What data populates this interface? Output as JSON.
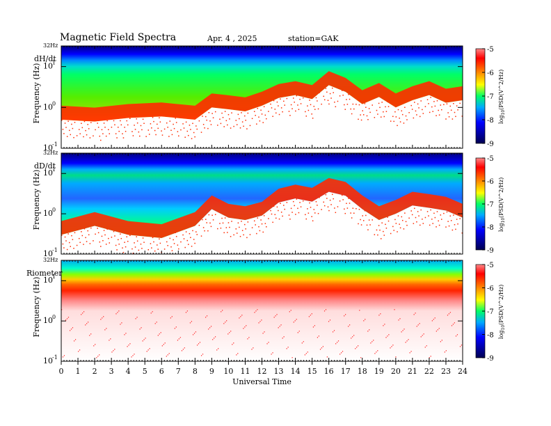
{
  "header": {
    "title": "Magnetic  Field  Spectra",
    "date": "Apr. 4  , 2025",
    "station": "station=GAK"
  },
  "chart_data": {
    "type": "heatmap",
    "panels": [
      {
        "label": "dH/dt",
        "ylabel": "Frequency  (Hz)",
        "top_label": "32Hz",
        "ytick_labels": [
          "10",
          "10",
          "10"
        ],
        "ytick_exponents": [
          "1",
          "0",
          "-1"
        ]
      },
      {
        "label": "dD/dt",
        "ylabel": "Frequency  (Hz)",
        "top_label": "32Hz",
        "ytick_labels": [
          "10",
          "10",
          "10"
        ],
        "ytick_exponents": [
          "1",
          "0",
          "-1"
        ]
      },
      {
        "label": "Riometer",
        "ylabel": "Frequency  (Hz)",
        "top_label": "32Hz",
        "ytick_labels": [
          "10",
          "10",
          "10"
        ],
        "ytick_exponents": [
          "1",
          "0",
          "-1"
        ]
      }
    ],
    "xlabel": "Universal  Time",
    "xlim": [
      0,
      24
    ],
    "x_tick_labels": [
      "0",
      "1",
      "2",
      "3",
      "4",
      "5",
      "6",
      "7",
      "8",
      "9",
      "10",
      "11",
      "12",
      "13",
      "14",
      "15",
      "16",
      "17",
      "18",
      "19",
      "20",
      "21",
      "22",
      "23",
      "24"
    ],
    "colorbar": {
      "label": "log10(PSD(V^2/Hz)",
      "label_text": "log",
      "label_sub": "10",
      "label_rest": "(PSD(V^2/Hz)",
      "tick_labels": [
        "-5",
        "-6",
        "-7",
        "-8",
        "-9"
      ],
      "range": [
        -9,
        -5
      ],
      "colors": [
        "#000060",
        "#0000ff",
        "#00aaff",
        "#00ff88",
        "#66ff00",
        "#ffff00",
        "#ff8800",
        "#ff0000",
        "#ffffff"
      ]
    },
    "background_level": {
      "dH/dt": {
        "band_low_edge_hz_by_hour": [
          [
            0,
            0.5
          ],
          [
            2,
            0.45
          ],
          [
            4,
            0.55
          ],
          [
            6,
            0.6
          ],
          [
            8,
            0.5
          ],
          [
            9,
            1.0
          ],
          [
            10,
            0.9
          ],
          [
            11,
            0.8
          ],
          [
            12,
            1.1
          ],
          [
            13,
            1.7
          ],
          [
            14,
            2.0
          ],
          [
            15,
            1.6
          ],
          [
            16,
            3.5
          ],
          [
            17,
            2.4
          ],
          [
            18,
            1.2
          ],
          [
            19,
            1.8
          ],
          [
            20,
            1.0
          ],
          [
            21,
            1.5
          ],
          [
            22,
            2.0
          ],
          [
            23,
            1.3
          ],
          [
            24,
            1.5
          ]
        ]
      },
      "dD/dt": {
        "band_low_edge_hz_by_hour": [
          [
            0,
            0.3
          ],
          [
            2,
            0.5
          ],
          [
            4,
            0.3
          ],
          [
            6,
            0.25
          ],
          [
            8,
            0.5
          ],
          [
            9,
            1.3
          ],
          [
            10,
            0.8
          ],
          [
            11,
            0.7
          ],
          [
            12,
            0.9
          ],
          [
            13,
            1.9
          ],
          [
            14,
            2.4
          ],
          [
            15,
            2.0
          ],
          [
            16,
            3.5
          ],
          [
            17,
            2.8
          ],
          [
            18,
            1.3
          ],
          [
            19,
            0.7
          ],
          [
            20,
            1.0
          ],
          [
            21,
            1.6
          ],
          [
            22,
            1.4
          ],
          [
            23,
            1.2
          ],
          [
            24,
            0.8
          ]
        ]
      },
      "Riometer": {
        "band_low_edge_hz_by_hour": [
          [
            0,
            6.0
          ],
          [
            24,
            6.0
          ]
        ]
      }
    }
  }
}
